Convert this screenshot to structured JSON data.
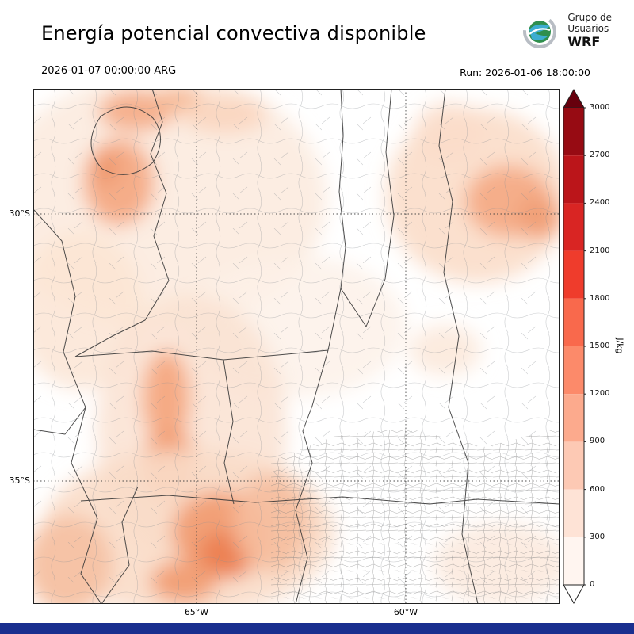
{
  "header": {
    "title": "Energía potencial convectiva disponible",
    "logo": {
      "org_line1": "Grupo de",
      "org_line2": "Usuarios",
      "org_line3": "WRF"
    },
    "valid_time": "2026-01-07 00:00:00 ARG",
    "run_label": "Run: 2026-01-06 18:00:00"
  },
  "map": {
    "lat_ticks": [
      "30°S",
      "35°S"
    ],
    "lon_ticks": [
      "65°W",
      "60°W"
    ]
  },
  "colorbar": {
    "unit": "J/kg",
    "tick_labels": [
      "3000",
      "2700",
      "2400",
      "2100",
      "1800",
      "1500",
      "1200",
      "900",
      "600",
      "300",
      "0"
    ],
    "segment_colors_top_to_bottom": [
      "#970b13",
      "#bb151a",
      "#d92523",
      "#ef3c2c",
      "#f9694c",
      "#fc8a6a",
      "#fcaa8d",
      "#fdc9b4",
      "#fee3d6",
      "#fff5f0"
    ],
    "over_arrow_color": "#67000d",
    "under_arrow_color": "#ffffff"
  },
  "chart_data": {
    "type": "heatmap",
    "title": "Energía potencial convectiva disponible",
    "unit": "J/kg",
    "scale_ticks": [
      0,
      300,
      600,
      900,
      1200,
      1500,
      1800,
      2100,
      2400,
      2700,
      3000
    ],
    "lat_gridlines": [
      "30°S",
      "35°S"
    ],
    "lon_gridlines": [
      "65°W",
      "60°W"
    ],
    "notes": "CAPE field over central-northern Argentina; maxima in NW highlands, NE patch near 29S-58W, and south-central zone near 35-36S 65W"
  },
  "footer": {
    "bar_color": "#1a2f8f"
  }
}
